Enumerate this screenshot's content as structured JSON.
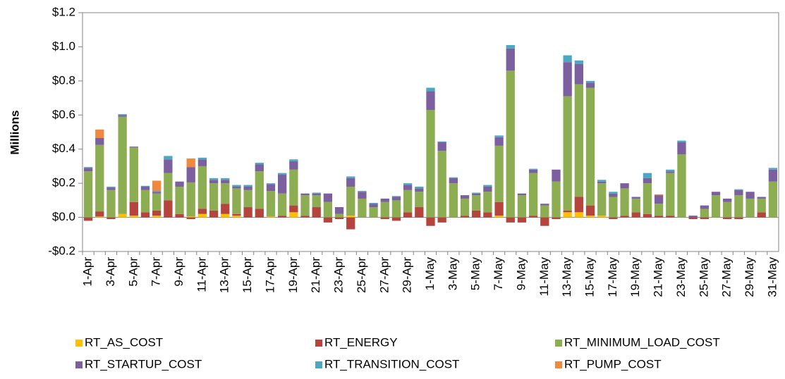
{
  "chart_data": {
    "type": "stacked_bar",
    "y_label": "Millions",
    "categories": [
      "1-Apr",
      null,
      "3-Apr",
      null,
      "5-Apr",
      null,
      "7-Apr",
      null,
      "9-Apr",
      null,
      "11-Apr",
      null,
      "13-Apr",
      null,
      "15-Apr",
      null,
      "17-Apr",
      null,
      "19-Apr",
      null,
      "21-Apr",
      null,
      "23-Apr",
      null,
      "25-Apr",
      null,
      "27-Apr",
      null,
      "29-Apr",
      null,
      "1-May",
      null,
      "3-May",
      null,
      "5-May",
      null,
      "7-May",
      null,
      "9-May",
      null,
      "11-May",
      null,
      "13-May",
      null,
      "15-May",
      null,
      "17-May",
      null,
      "19-May",
      null,
      "21-May",
      null,
      "23-May",
      null,
      "25-May",
      null,
      "27-May",
      null,
      "29-May",
      null,
      "31-May"
    ],
    "series": [
      {
        "name": "RT_AS_COST",
        "color": "#ffc000",
        "values": [
          0,
          0.005,
          0,
          0.02,
          0.01,
          0,
          0.01,
          0,
          0,
          0.005,
          0.02,
          0,
          0.02,
          0.01,
          0,
          0,
          0.005,
          0,
          0.03,
          0,
          0,
          0,
          0,
          0.01,
          0,
          0,
          0,
          0,
          0,
          0,
          0,
          0,
          0,
          0,
          0,
          0,
          0.01,
          0,
          0,
          0,
          0,
          0,
          0.03,
          0.03,
          0.01,
          0.01,
          0,
          0,
          0,
          0,
          0,
          0,
          0,
          0,
          0,
          0,
          0,
          0,
          0,
          0,
          0
        ]
      },
      {
        "name": "RT_ENERGY",
        "color": "#b5443f",
        "values": [
          -0.02,
          0.03,
          -0.01,
          0,
          0.08,
          0.03,
          0.03,
          0.1,
          0.02,
          -0.01,
          0.03,
          0.04,
          0.06,
          0.01,
          0.06,
          0.05,
          0,
          0.01,
          0.04,
          0.01,
          0.06,
          -0.03,
          -0.01,
          -0.07,
          0,
          0,
          -0.01,
          -0.02,
          0.03,
          0.06,
          -0.05,
          -0.03,
          0,
          0.01,
          0.04,
          0.03,
          0.08,
          -0.03,
          -0.03,
          0.01,
          -0.05,
          -0.01,
          0.01,
          0.09,
          0.06,
          0,
          -0.01,
          0.01,
          0.03,
          0.02,
          0.01,
          0.01,
          0,
          -0.01,
          -0.01,
          0,
          -0.01,
          -0.01,
          0,
          0.03,
          0
        ]
      },
      {
        "name": "RT_MINIMUM_LOAD_COST",
        "color": "#8cad52",
        "values": [
          0.27,
          0.39,
          0.16,
          0.57,
          0.32,
          0.13,
          0.1,
          0.16,
          0.16,
          0.2,
          0.25,
          0.16,
          0.12,
          0.15,
          0.1,
          0.22,
          0.15,
          0.13,
          0.21,
          0.12,
          0.07,
          0.09,
          0.02,
          0.17,
          0.11,
          0.06,
          0.09,
          0.1,
          0.13,
          0.09,
          0.63,
          0.39,
          0.2,
          0.1,
          0.09,
          0.12,
          0.33,
          0.86,
          0.13,
          0.25,
          0.07,
          0.21,
          0.67,
          0.66,
          0.69,
          0.19,
          0.12,
          0.16,
          0.08,
          0.18,
          0.07,
          0.25,
          0.37,
          0,
          0.05,
          0.13,
          0.09,
          0.13,
          0.11,
          0.08,
          0.21
        ]
      },
      {
        "name": "RT_STARTUP_COST",
        "color": "#7b5f9e",
        "values": [
          0.02,
          0.04,
          0.015,
          0.01,
          0.005,
          0.02,
          0.01,
          0.08,
          0.03,
          0.09,
          0.04,
          0.02,
          0.02,
          0.01,
          0.02,
          0.04,
          0.04,
          0.11,
          0.05,
          0.01,
          0.01,
          0.05,
          0.04,
          0.05,
          0.04,
          0.02,
          0.02,
          0.02,
          0.03,
          0.02,
          0.11,
          0.05,
          0.03,
          0.02,
          0.01,
          0.03,
          0.05,
          0.13,
          0.01,
          0.02,
          0.01,
          0.07,
          0.2,
          0.12,
          0.03,
          0.01,
          0.02,
          0.03,
          0.01,
          0.03,
          0.05,
          0.01,
          0.07,
          0.01,
          0.02,
          0.02,
          0.02,
          0.03,
          0.04,
          0.01,
          0.07
        ]
      },
      {
        "name": "RT_TRANSITION_COST",
        "color": "#4aa8c2",
        "values": [
          0.005,
          0,
          0.005,
          0.005,
          0,
          0.005,
          0.005,
          0.02,
          0,
          0,
          0.01,
          0.01,
          0.01,
          0.01,
          0.01,
          0.01,
          0.005,
          0.01,
          0.01,
          0,
          0.005,
          0,
          0,
          0.01,
          0.005,
          0.005,
          0,
          0.005,
          0.01,
          0.01,
          0.02,
          0.005,
          0.005,
          0,
          0.005,
          0.01,
          0.01,
          0.02,
          0,
          0.005,
          0,
          0,
          0.04,
          0.02,
          0.01,
          0.01,
          0.01,
          0,
          0,
          0.03,
          0,
          0.01,
          0.01,
          0,
          0,
          0,
          0,
          0.005,
          0,
          0,
          0.01
        ]
      },
      {
        "name": "RT_PUMP_COST",
        "color": "#f0883e",
        "values": [
          0,
          0.05,
          0,
          0,
          0,
          0,
          0.06,
          0,
          0,
          0.05,
          0,
          0,
          0,
          0,
          0,
          0,
          0,
          0,
          0,
          0,
          0,
          0,
          0,
          0,
          0,
          0,
          0,
          0,
          0,
          0,
          0,
          0,
          0,
          0,
          0,
          0,
          0,
          0,
          0,
          0,
          0,
          0,
          0,
          0,
          0,
          0,
          0,
          0,
          0,
          0,
          0.005,
          0,
          0,
          0,
          0,
          0,
          0,
          0,
          0,
          0,
          0
        ]
      }
    ],
    "ylim": [
      -0.2,
      1.2
    ],
    "yticks": [
      {
        "value": -0.2,
        "label": "-$0.2"
      },
      {
        "value": 0,
        "label": "$0.0"
      },
      {
        "value": 0.2,
        "label": "$0.2"
      },
      {
        "value": 0.4,
        "label": "$0.4"
      },
      {
        "value": 0.6,
        "label": "$0.6"
      },
      {
        "value": 0.8,
        "label": "$0.8"
      },
      {
        "value": 1.0,
        "label": "$1.0"
      },
      {
        "value": 1.2,
        "label": "$1.2"
      }
    ],
    "grid": false
  }
}
